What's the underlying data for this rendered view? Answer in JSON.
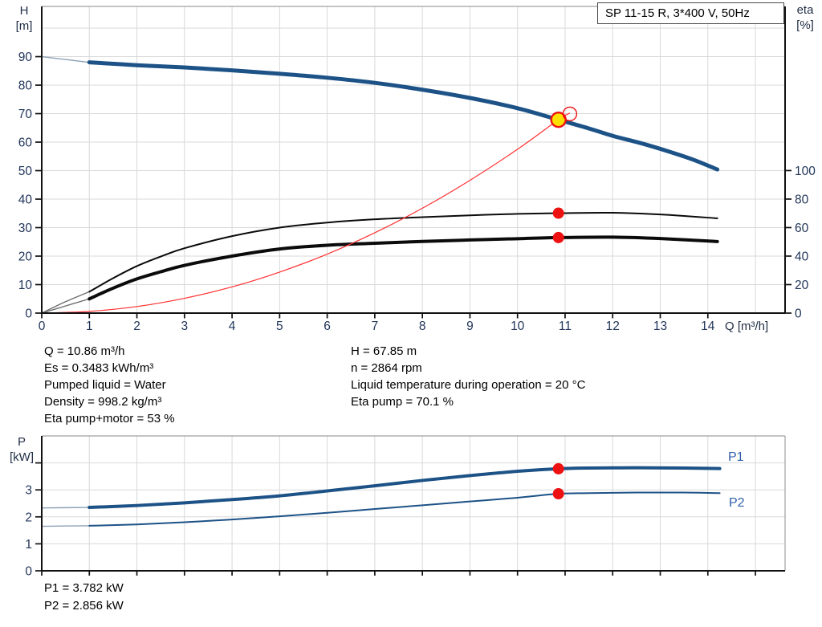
{
  "title_box": {
    "label": "SP 11-15 R, 3*400 V, 50Hz"
  },
  "colors": {
    "curve_blue": "#1d5287",
    "curve_blue_lead": "#8ba0b8",
    "curve_black": "#0b0b0b",
    "curve_black_lead": "#6e6e6e",
    "curve_red": "#ff3030",
    "marker_red": "#ee1111",
    "marker_yellow": "#ffe000",
    "grid": "#d9d9d9",
    "frame_gray": "#a0a0a0",
    "axis": "#111111",
    "tick_text": "#22365a",
    "label_blue": "#2e5fa8"
  },
  "info_panel": {
    "left_lines": [
      "Q = 10.86 m³/h",
      "Es = 0.3483 kWh/m³",
      "Pumped liquid = Water",
      "Density = 998.2 kg/m³",
      "Eta pump+motor = 53 %"
    ],
    "right_lines": [
      "H = 67.85 m",
      "n = 2864 rpm",
      "Liquid temperature during operation = 20 °C",
      "Eta pump = 70.1 %"
    ],
    "power_lines": [
      "P1 = 3.782 kW",
      "P2 = 2.856 kW"
    ]
  },
  "chart_data": [
    {
      "type": "line",
      "name": "pump-performance-chart",
      "x_axis": {
        "label": "Q [m³/h]",
        "min": 0,
        "max": 15.6,
        "tick_values": [
          0,
          1,
          2,
          3,
          4,
          5,
          6,
          7,
          8,
          9,
          10,
          11,
          12,
          13,
          14
        ],
        "grid_step": 1
      },
      "y_left": {
        "label_lines": [
          "H",
          "[m]"
        ],
        "min": 0,
        "max": 107,
        "tick_values": [
          0,
          10,
          20,
          30,
          40,
          50,
          60,
          70,
          80,
          90
        ],
        "grid_max": 100
      },
      "y_right": {
        "label_lines": [
          "eta",
          "[%]"
        ],
        "min": 0,
        "max": 215,
        "tick_values": [
          0,
          20,
          40,
          60,
          80,
          100
        ]
      },
      "series": [
        {
          "name": "eta-pump-curve",
          "axis": "right",
          "width": 2,
          "points": [
            [
              0,
              0
            ],
            [
              0.5,
              8
            ],
            [
              1,
              15
            ],
            [
              1.5,
              24.5
            ],
            [
              2,
              33
            ],
            [
              2.5,
              39.7
            ],
            [
              3,
              45.5
            ],
            [
              4,
              54
            ],
            [
              5,
              60
            ],
            [
              6,
              63.5
            ],
            [
              7,
              65.8
            ],
            [
              8,
              67.3
            ],
            [
              9,
              68.6
            ],
            [
              10,
              69.6
            ],
            [
              10.86,
              70.1
            ],
            [
              12,
              70.4
            ],
            [
              13,
              69.2
            ],
            [
              14.2,
              66.5
            ]
          ],
          "lead_until": 1
        },
        {
          "name": "eta-pump-plus-motor-curve",
          "axis": "right",
          "width": 4,
          "points": [
            [
              0,
              0
            ],
            [
              0.5,
              5
            ],
            [
              1,
              10
            ],
            [
              1.5,
              17.5
            ],
            [
              2,
              24
            ],
            [
              2.5,
              29
            ],
            [
              3,
              33.5
            ],
            [
              4,
              40
            ],
            [
              5,
              45
            ],
            [
              6,
              47.6
            ],
            [
              7,
              49
            ],
            [
              8,
              50.3
            ],
            [
              9,
              51.3
            ],
            [
              10,
              52.2
            ],
            [
              10.86,
              53
            ],
            [
              12,
              53.3
            ],
            [
              13,
              52.3
            ],
            [
              14.2,
              50.2
            ]
          ],
          "lead_until": 1
        },
        {
          "name": "system-curve",
          "axis": "left",
          "width": 1.2,
          "stroke": "red",
          "points": [
            [
              0,
              0
            ],
            [
              1,
              0.6
            ],
            [
              2,
              2.3
            ],
            [
              3,
              5.2
            ],
            [
              4,
              9.2
            ],
            [
              5,
              14.4
            ],
            [
              6,
              20.7
            ],
            [
              7,
              28.2
            ],
            [
              8,
              36.8
            ],
            [
              9,
              46.6
            ],
            [
              10,
              57.5
            ],
            [
              10.86,
              67.85
            ],
            [
              11.1,
              70.2
            ]
          ]
        },
        {
          "name": "head-curve",
          "axis": "left",
          "width": 5,
          "stroke": "blue",
          "points": [
            [
              0,
              90
            ],
            [
              0.5,
              89
            ],
            [
              1,
              88
            ],
            [
              2,
              87
            ],
            [
              3,
              86.2
            ],
            [
              4,
              85.2
            ],
            [
              5,
              84
            ],
            [
              6,
              82.6
            ],
            [
              7,
              80.8
            ],
            [
              8,
              78.4
            ],
            [
              9,
              75.5
            ],
            [
              10,
              71.9
            ],
            [
              10.86,
              67.85
            ],
            [
              11.5,
              64.8
            ],
            [
              12,
              62.2
            ],
            [
              12.6,
              59.6
            ],
            [
              13.2,
              56.6
            ],
            [
              13.7,
              53.8
            ],
            [
              14.2,
              50.4
            ]
          ],
          "lead_until": 1
        }
      ],
      "markers": [
        {
          "name": "duty-point",
          "shape": "circle",
          "axis": "left",
          "x": 10.86,
          "value": 67.85,
          "r": 9,
          "fill": "yellow",
          "stroke_width": 2.4
        },
        {
          "name": "requested-duty-ring",
          "shape": "ring",
          "axis": "left",
          "x": 11.1,
          "value": 69.9,
          "r": 8.5,
          "stroke_width": 1.4
        },
        {
          "name": "eta-pump-point",
          "shape": "circle",
          "axis": "right",
          "x": 10.86,
          "value": 70.1,
          "r": 7
        },
        {
          "name": "eta-total-point",
          "shape": "circle",
          "axis": "right",
          "x": 10.86,
          "value": 53,
          "r": 7
        }
      ]
    },
    {
      "type": "line",
      "name": "power-chart",
      "x_axis": {
        "label": "",
        "min": 0,
        "max": 15.6,
        "tick_values": [
          0,
          1,
          2,
          3,
          4,
          5,
          6,
          7,
          8,
          9,
          10,
          11,
          12,
          13,
          14,
          15
        ],
        "grid_step": 1
      },
      "y_left": {
        "label_lines": [
          "P",
          "[kW]"
        ],
        "min": 0,
        "max": 5,
        "tick_values": [
          0,
          1,
          2,
          3,
          4
        ],
        "tick_labels": [
          "0",
          "1",
          "2",
          "3",
          ""
        ],
        "grid_max": 4
      },
      "series": [
        {
          "name": "p1-curve",
          "label": "P1",
          "axis": "left",
          "width": 4,
          "stroke": "blue",
          "points": [
            [
              0,
              2.33
            ],
            [
              1,
              2.35
            ],
            [
              2,
              2.42
            ],
            [
              3,
              2.52
            ],
            [
              4,
              2.64
            ],
            [
              5,
              2.78
            ],
            [
              6,
              2.96
            ],
            [
              7,
              3.15
            ],
            [
              8,
              3.35
            ],
            [
              9,
              3.53
            ],
            [
              10,
              3.69
            ],
            [
              10.86,
              3.782
            ],
            [
              11.5,
              3.81
            ],
            [
              12.5,
              3.82
            ],
            [
              13.5,
              3.81
            ],
            [
              14.25,
              3.79
            ]
          ],
          "lead_until": 1
        },
        {
          "name": "p2-curve",
          "label": "P2",
          "axis": "left",
          "width": 2,
          "stroke": "blue",
          "points": [
            [
              0,
              1.65
            ],
            [
              1,
              1.67
            ],
            [
              2,
              1.72
            ],
            [
              3,
              1.8
            ],
            [
              4,
              1.9
            ],
            [
              5,
              2.02
            ],
            [
              6,
              2.15
            ],
            [
              7,
              2.29
            ],
            [
              8,
              2.43
            ],
            [
              9,
              2.57
            ],
            [
              10,
              2.71
            ],
            [
              10.86,
              2.856
            ],
            [
              11.5,
              2.88
            ],
            [
              12.5,
              2.9
            ],
            [
              13.5,
              2.9
            ],
            [
              14.25,
              2.88
            ]
          ],
          "lead_until": 1
        }
      ],
      "markers": [
        {
          "name": "p1-point",
          "shape": "circle",
          "axis": "left",
          "x": 10.86,
          "value": 3.782,
          "r": 7
        },
        {
          "name": "p2-point",
          "shape": "circle",
          "axis": "left",
          "x": 10.86,
          "value": 2.856,
          "r": 7
        }
      ]
    }
  ]
}
